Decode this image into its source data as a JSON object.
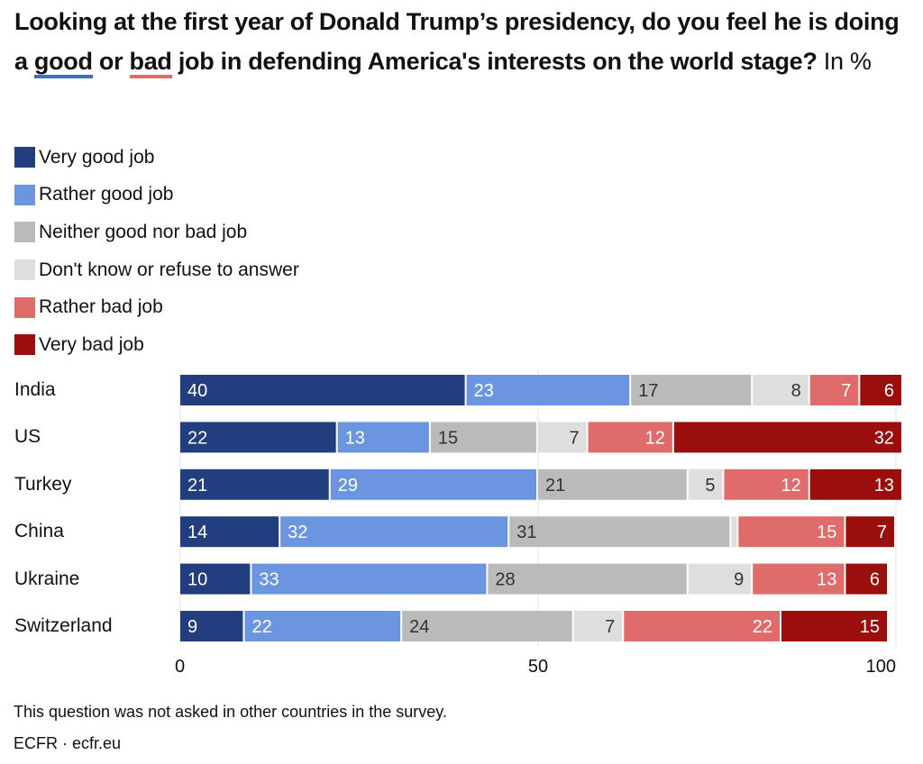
{
  "chart_data": {
    "type": "bar",
    "orientation": "horizontal",
    "stacked": true,
    "title_parts": {
      "before_good": "Looking at the first year of Donald Trump’s presidency, do you feel he is doing a ",
      "good": "good",
      "middle": " or ",
      "bad": "bad",
      "after_bad": " job in defending America's interests on the world stage?",
      "unit": " In %"
    },
    "title": "Looking at the first year of Donald Trump’s presidency, do you feel he is doing a good or bad job in defending America's interests on the world stage? In %",
    "xlabel": "",
    "ylabel": "",
    "xlim": [
      0,
      100
    ],
    "x_ticks": [
      0,
      50,
      100
    ],
    "grid": true,
    "legend_position": "top-left",
    "categories": [
      "India",
      "US",
      "Turkey",
      "China",
      "Ukraine",
      "Switzerland"
    ],
    "series": [
      {
        "name": "Very good job",
        "color": "#233e7f",
        "label_color": "#ffffff",
        "label_align": "left",
        "values": [
          40,
          22,
          21,
          14,
          10,
          9
        ]
      },
      {
        "name": "Rather good job",
        "color": "#6b95de",
        "label_color": "#ffffff",
        "label_align": "left",
        "values": [
          23,
          13,
          29,
          32,
          33,
          22
        ]
      },
      {
        "name": "Neither good nor bad job",
        "color": "#bababa",
        "label_color": "#333333",
        "label_align": "left",
        "values": [
          17,
          15,
          21,
          31,
          28,
          24
        ]
      },
      {
        "name": "Don't know or refuse to answer",
        "color": "#dedede",
        "label_color": "#333333",
        "label_align": "right",
        "values": [
          8,
          7,
          5,
          1,
          9,
          7
        ]
      },
      {
        "name": "Rather bad job",
        "color": "#e06b6b",
        "label_color": "#ffffff",
        "label_align": "right",
        "values": [
          7,
          12,
          12,
          15,
          13,
          22
        ]
      },
      {
        "name": "Very bad job",
        "color": "#9b0e0e",
        "label_color": "#ffffff",
        "label_align": "right",
        "values": [
          6,
          32,
          13,
          7,
          6,
          15
        ]
      }
    ],
    "hidden_labels": [
      [
        3,
        3
      ]
    ]
  },
  "footer": {
    "note": "This question was not asked in other countries in the survey.",
    "source": "ECFR · ecfr.eu"
  }
}
